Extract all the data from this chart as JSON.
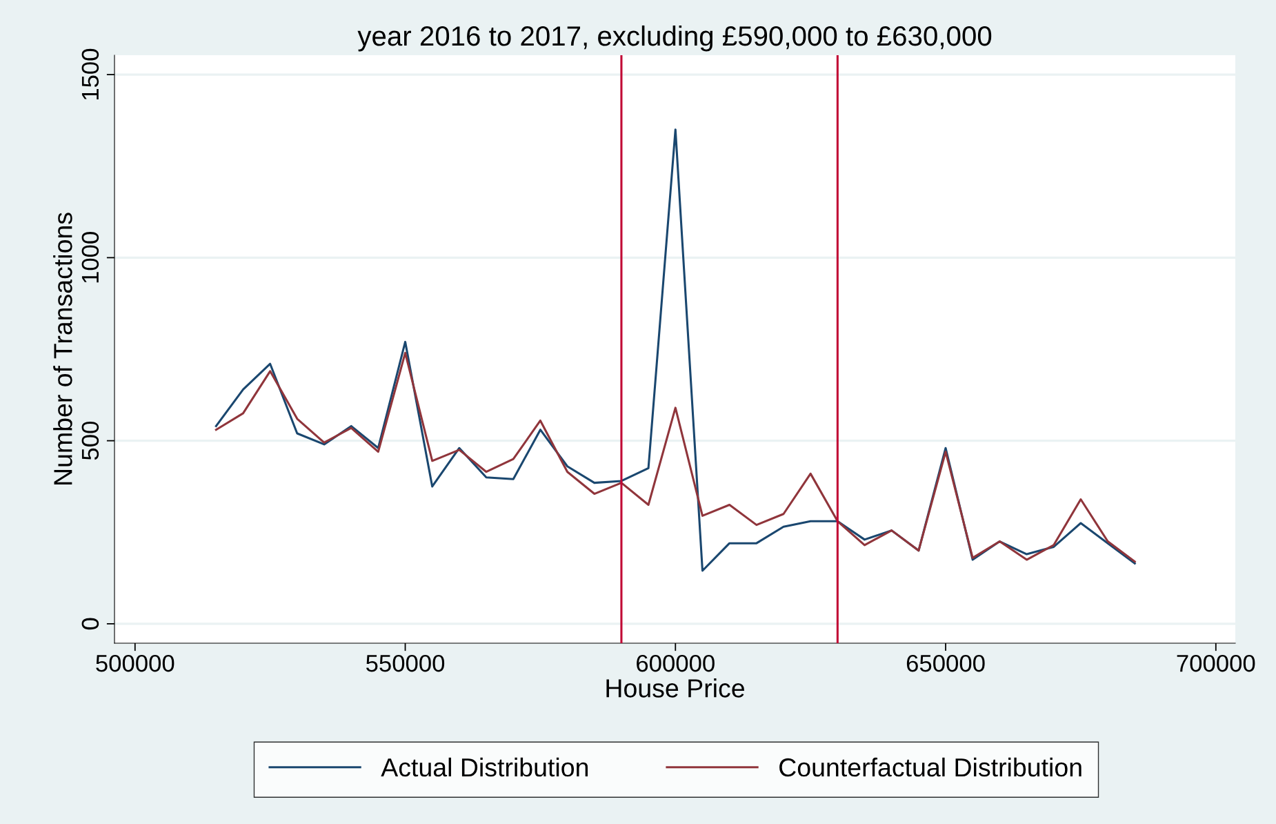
{
  "chart_data": {
    "type": "line",
    "title": "year 2016 to 2017, excluding £590,000 to £630,000",
    "xlabel": "House Price",
    "ylabel": "Number of Transactions",
    "x": [
      515000,
      520000,
      525000,
      530000,
      535000,
      540000,
      545000,
      550000,
      555000,
      560000,
      565000,
      570000,
      575000,
      580000,
      585000,
      590000,
      595000,
      600000,
      605000,
      610000,
      615000,
      620000,
      625000,
      630000,
      635000,
      640000,
      645000,
      650000,
      655000,
      660000,
      665000,
      670000,
      675000,
      680000,
      685000
    ],
    "series": [
      {
        "name": "Actual Distribution",
        "color": "#1a476f",
        "values": [
          540,
          640,
          710,
          520,
          490,
          540,
          480,
          770,
          375,
          480,
          400,
          395,
          530,
          430,
          385,
          390,
          425,
          1350,
          145,
          220,
          220,
          265,
          280,
          280,
          230,
          255,
          200,
          480,
          175,
          225,
          190,
          210,
          275,
          220,
          165
        ]
      },
      {
        "name": "Counterfactual Distribution",
        "color": "#90353b",
        "values": [
          530,
          575,
          690,
          560,
          495,
          535,
          470,
          740,
          445,
          475,
          415,
          450,
          555,
          415,
          355,
          385,
          325,
          590,
          295,
          325,
          270,
          300,
          410,
          280,
          215,
          255,
          200,
          470,
          180,
          225,
          175,
          215,
          340,
          225,
          170
        ]
      }
    ],
    "xlim": [
      496200,
      703600
    ],
    "ylim": [
      -53,
      1553
    ],
    "xticks": [
      500000,
      550000,
      600000,
      650000,
      700000
    ],
    "yticks": [
      0,
      500,
      1000,
      1500
    ],
    "ref_lines": [
      {
        "axis": "x",
        "value": 590000,
        "color": "#c10534"
      },
      {
        "axis": "x",
        "value": 630000,
        "color": "#c10534"
      }
    ],
    "grid": "y",
    "legend": "bottom",
    "marker": "none",
    "line_style": "solid"
  }
}
